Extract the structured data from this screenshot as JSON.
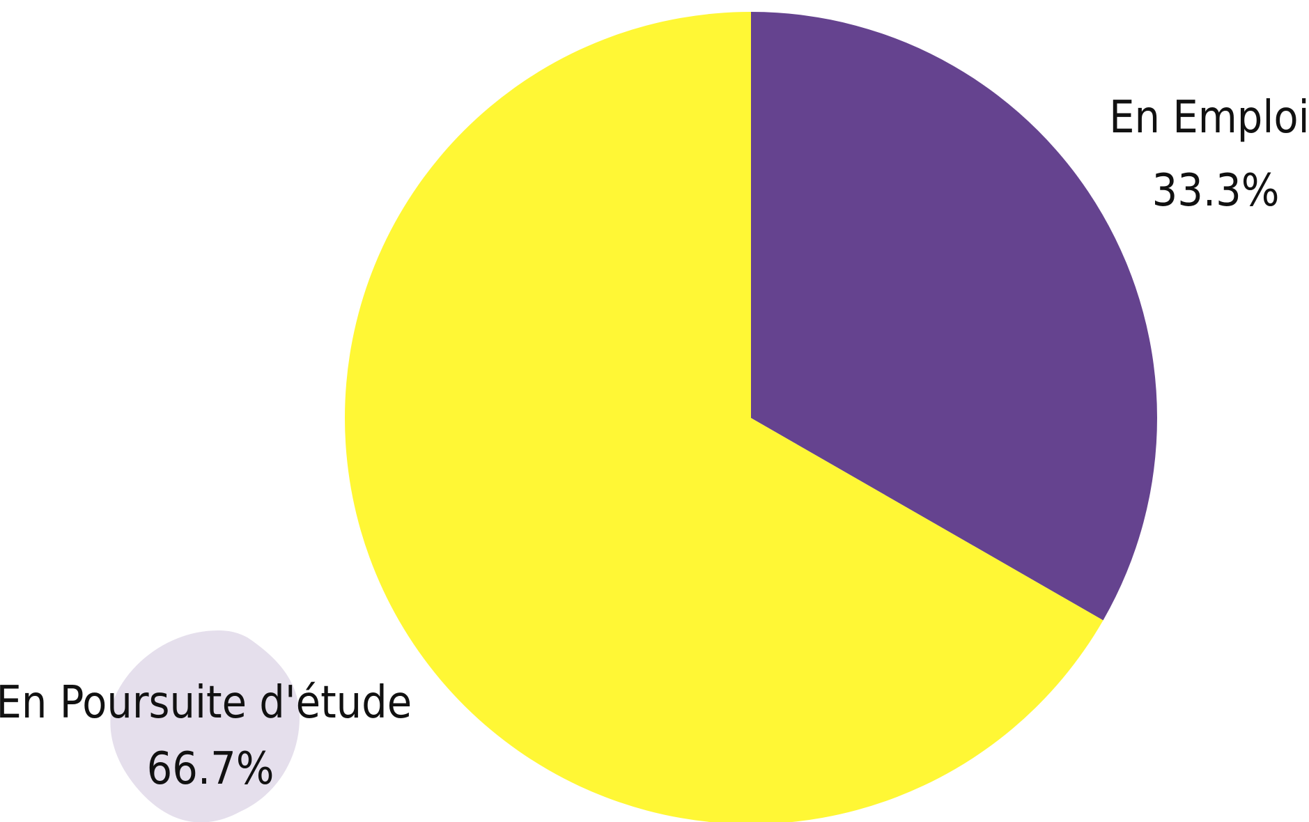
{
  "chart_data": {
    "type": "pie",
    "title": "",
    "slices": [
      {
        "label": "En Emploi",
        "value": 33.3,
        "value_label": "33.3%",
        "color": "#65438f"
      },
      {
        "label": "En Poursuite d'étude",
        "value": 66.7,
        "value_label": "66.7%",
        "color": "#fff735"
      }
    ],
    "start_angle": "top",
    "direction": "clockwise",
    "decoration_color": "#e5dfec"
  }
}
